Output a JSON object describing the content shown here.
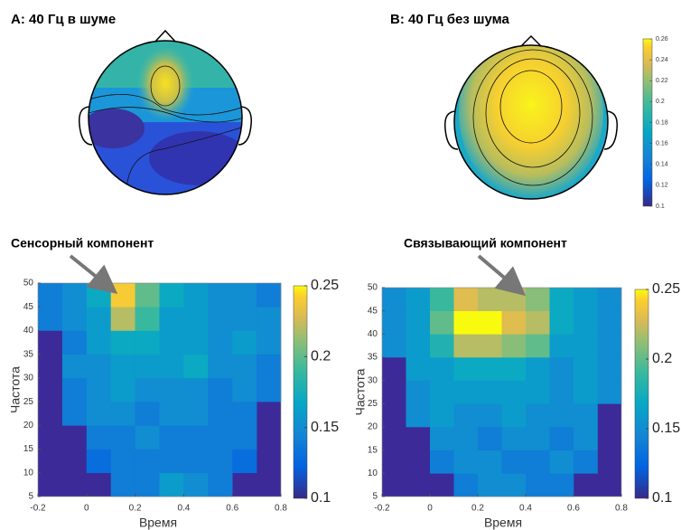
{
  "topomaps": {
    "titles": [
      "A: 40 Гц в шуме",
      "B: 40 Гц без шума"
    ],
    "colorbar": {
      "clim": [
        0.1,
        0.26
      ],
      "ticks": [
        0.1,
        0.12,
        0.14,
        0.16,
        0.18,
        0.2,
        0.22,
        0.24,
        0.26
      ]
    }
  },
  "chart_data": [
    {
      "type": "heatmap",
      "annotation": "Сенсорный компонент",
      "xlabel": "Время",
      "ylabel": "Частота",
      "xbins": [
        -0.2,
        -0.1,
        0,
        0.1,
        0.2,
        0.3,
        0.4,
        0.5,
        0.6,
        0.7,
        0.8
      ],
      "ybins": [
        5,
        10,
        15,
        20,
        25,
        30,
        35,
        40,
        45,
        50
      ],
      "values": [
        [
          null,
          null,
          null,
          0.14,
          0.14,
          0.16,
          0.15,
          0.14,
          null,
          null
        ],
        [
          null,
          null,
          0.13,
          0.14,
          0.14,
          0.14,
          0.14,
          0.14,
          0.13,
          null
        ],
        [
          null,
          null,
          0.14,
          0.14,
          0.15,
          0.14,
          0.14,
          0.14,
          0.14,
          null
        ],
        [
          null,
          0.14,
          0.15,
          0.15,
          0.14,
          0.15,
          0.15,
          0.14,
          0.14,
          null
        ],
        [
          null,
          0.14,
          0.15,
          0.16,
          0.15,
          0.15,
          0.15,
          0.14,
          0.15,
          0.14
        ],
        [
          null,
          0.15,
          0.15,
          0.16,
          0.16,
          0.16,
          0.17,
          0.15,
          0.15,
          0.14
        ],
        [
          null,
          0.14,
          0.16,
          0.17,
          0.17,
          0.16,
          0.16,
          0.15,
          0.16,
          0.15
        ],
        [
          0.14,
          0.15,
          0.16,
          0.22,
          0.19,
          0.16,
          0.16,
          0.15,
          0.15,
          0.15
        ],
        [
          0.14,
          0.15,
          0.17,
          0.24,
          0.2,
          0.17,
          0.16,
          0.15,
          0.15,
          0.14
        ]
      ],
      "xlim": [
        -0.2,
        0.8
      ],
      "ylim": [
        5,
        50
      ],
      "xticks": [
        -0.2,
        0,
        0.2,
        0.4,
        0.6,
        0.8
      ],
      "yticks": [
        5,
        10,
        15,
        20,
        25,
        30,
        35,
        40,
        45,
        50
      ],
      "clim": [
        0.1,
        0.25
      ],
      "cticks": [
        0.1,
        0.15,
        0.2,
        0.25
      ]
    },
    {
      "type": "heatmap",
      "annotation": "Связывающий компонент",
      "xlabel": "Время",
      "ylabel": "Частота",
      "xbins": [
        -0.2,
        -0.1,
        0,
        0.1,
        0.2,
        0.3,
        0.4,
        0.5,
        0.6,
        0.7,
        0.8
      ],
      "ybins": [
        5,
        10,
        15,
        20,
        25,
        30,
        35,
        40,
        45,
        50
      ],
      "values": [
        [
          null,
          null,
          null,
          0.14,
          0.15,
          0.15,
          0.14,
          0.14,
          null,
          null
        ],
        [
          null,
          null,
          0.14,
          0.15,
          0.15,
          0.14,
          0.14,
          0.15,
          0.14,
          null
        ],
        [
          null,
          null,
          0.15,
          0.15,
          0.14,
          0.15,
          0.15,
          0.14,
          0.15,
          null
        ],
        [
          null,
          0.15,
          0.16,
          0.15,
          0.15,
          0.16,
          0.15,
          0.15,
          0.15,
          null
        ],
        [
          null,
          0.15,
          0.16,
          0.16,
          0.16,
          0.16,
          0.16,
          0.15,
          0.16,
          0.15
        ],
        [
          null,
          0.16,
          0.16,
          0.17,
          0.17,
          0.17,
          0.16,
          0.15,
          0.16,
          0.15
        ],
        [
          0.15,
          0.16,
          0.18,
          0.22,
          0.22,
          0.21,
          0.2,
          0.16,
          0.16,
          0.15
        ],
        [
          0.15,
          0.16,
          0.2,
          0.25,
          0.25,
          0.23,
          0.22,
          0.17,
          0.16,
          0.15
        ],
        [
          0.15,
          0.16,
          0.19,
          0.23,
          0.22,
          0.22,
          0.21,
          0.17,
          0.16,
          0.15
        ]
      ],
      "xlim": [
        -0.2,
        0.8
      ],
      "ylim": [
        5,
        50
      ],
      "xticks": [
        -0.2,
        0,
        0.2,
        0.4,
        0.6,
        0.8
      ],
      "yticks": [
        5,
        10,
        15,
        20,
        25,
        30,
        35,
        40,
        45,
        50
      ],
      "clim": [
        0.1,
        0.25
      ],
      "cticks": [
        0.1,
        0.15,
        0.2,
        0.25
      ]
    }
  ]
}
